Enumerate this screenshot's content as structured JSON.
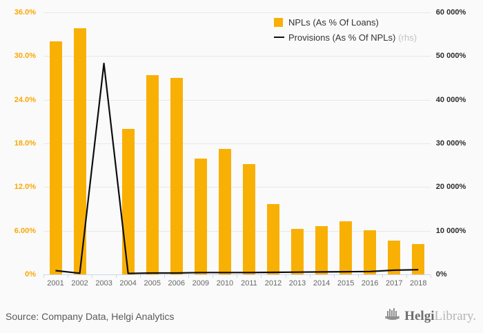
{
  "page": {
    "background": "#fafafa"
  },
  "legend": {
    "items": [
      {
        "label": "NPLs (As % Of Loans)",
        "suffix": "",
        "type": "bar",
        "color": "#F9B005"
      },
      {
        "label": "Provisions (As % Of NPLs)",
        "suffix": "(rhs)",
        "type": "line",
        "color": "#0d0d0d"
      }
    ]
  },
  "chart_data": {
    "type": "bar",
    "title": "",
    "categories": [
      "2001",
      "2002",
      "2003",
      "2004",
      "2005",
      "2006",
      "2009",
      "2010",
      "2011",
      "2012",
      "2013",
      "2014",
      "2015",
      "2016",
      "2017",
      "2018"
    ],
    "series": [
      {
        "name": "NPLs (As % Of Loans)",
        "type": "bar",
        "axis": "left",
        "color": "#F9B005",
        "values": [
          32.0,
          33.8,
          null,
          20.0,
          27.4,
          27.0,
          15.9,
          17.2,
          15.2,
          9.7,
          6.3,
          6.6,
          7.3,
          6.1,
          4.7,
          4.2
        ]
      },
      {
        "name": "Provisions (As % Of NPLs)",
        "type": "line",
        "axis": "right",
        "color": "#0d0d0d",
        "values": [
          900,
          300,
          48300,
          250,
          350,
          350,
          450,
          450,
          450,
          500,
          550,
          600,
          650,
          700,
          1000,
          1100
        ]
      }
    ],
    "left_axis": {
      "min": 0,
      "max": 36,
      "tick_labels": [
        "0%",
        "6.00%",
        "12.0%",
        "18.0%",
        "24.0%",
        "30.0%",
        "36.0%"
      ],
      "color": "#F9A802"
    },
    "right_axis": {
      "min": 0,
      "max": 60000,
      "tick_labels": [
        "0%",
        "10 000%",
        "20 000%",
        "30 000%",
        "40 000%",
        "50 000%",
        "60 000%"
      ],
      "color": "#2b2b2b"
    },
    "grid": true,
    "legend_position": "top-right"
  },
  "footer": {
    "source": "Source: Company Data, Helgi Analytics",
    "logo": {
      "name": "Helgi",
      "name2": "Library."
    }
  }
}
